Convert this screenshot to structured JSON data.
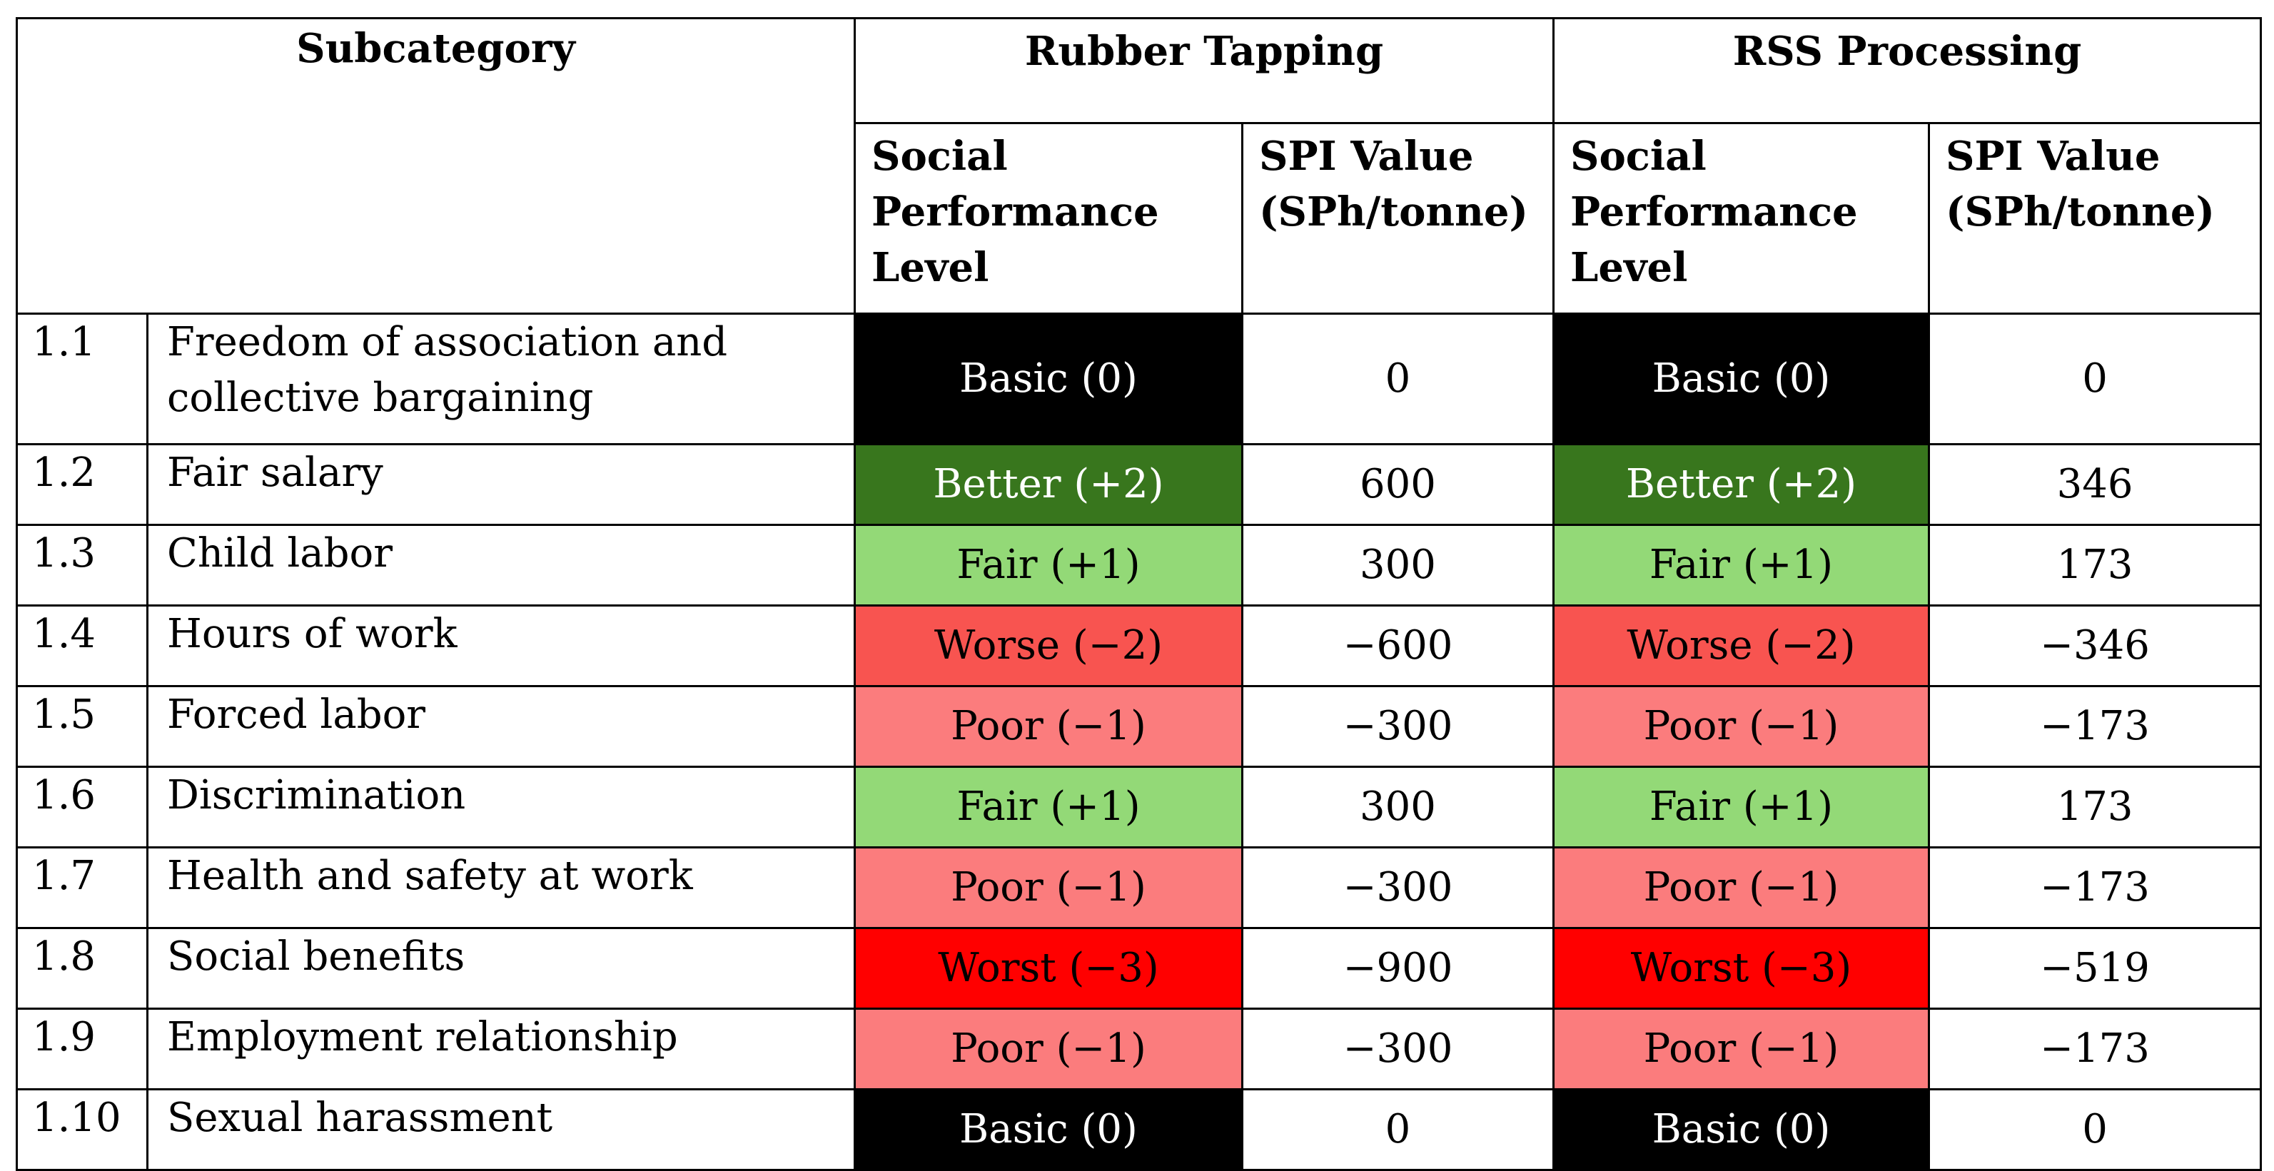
{
  "header": {
    "subcategory": "Subcategory",
    "group1": "Rubber Tapping",
    "group2": "RSS Processing",
    "spl": "Social Performance Level",
    "spi": "SPI Value (SPh/tonne)"
  },
  "level_colors": {
    "basic": "#000000",
    "better": "#38761d",
    "fair": "#93d977",
    "worse": "#f85450",
    "poor": "#fb7c7d",
    "worst": "#ff0000"
  },
  "rows": [
    {
      "num": "1.1",
      "name": "Freedom of association and collective bargaining",
      "rt_level": "Basic (0)",
      "rt_spi": "0",
      "rss_level": "Basic (0)",
      "rss_spi": "0",
      "level_class": "basic"
    },
    {
      "num": "1.2",
      "name": "Fair salary",
      "rt_level": "Better (+2)",
      "rt_spi": "600",
      "rss_level": "Better (+2)",
      "rss_spi": "346",
      "level_class": "better"
    },
    {
      "num": "1.3",
      "name": "Child labor",
      "rt_level": "Fair (+1)",
      "rt_spi": "300",
      "rss_level": "Fair (+1)",
      "rss_spi": "173",
      "level_class": "fair"
    },
    {
      "num": "1.4",
      "name": "Hours of work",
      "rt_level": "Worse (−2)",
      "rt_spi": "−600",
      "rss_level": "Worse (−2)",
      "rss_spi": "−346",
      "level_class": "worse"
    },
    {
      "num": "1.5",
      "name": "Forced labor",
      "rt_level": "Poor (−1)",
      "rt_spi": "−300",
      "rss_level": "Poor (−1)",
      "rss_spi": "−173",
      "level_class": "poor"
    },
    {
      "num": "1.6",
      "name": "Discrimination",
      "rt_level": "Fair (+1)",
      "rt_spi": "300",
      "rss_level": "Fair (+1)",
      "rss_spi": "173",
      "level_class": "fair"
    },
    {
      "num": "1.7",
      "name": "Health and safety at work",
      "rt_level": "Poor (−1)",
      "rt_spi": "−300",
      "rss_level": "Poor (−1)",
      "rss_spi": "−173",
      "level_class": "poor"
    },
    {
      "num": "1.8",
      "name": "Social benefits",
      "rt_level": "Worst (−3)",
      "rt_spi": "−900",
      "rss_level": "Worst (−3)",
      "rss_spi": "−519",
      "level_class": "worst"
    },
    {
      "num": "1.9",
      "name": "Employment relationship",
      "rt_level": "Poor (−1)",
      "rt_spi": "−300",
      "rss_level": "Poor (−1)",
      "rss_spi": "−173",
      "level_class": "poor"
    },
    {
      "num": "1.10",
      "name": "Sexual harassment",
      "rt_level": "Basic (0)",
      "rt_spi": "0",
      "rss_level": "Basic (0)",
      "rss_spi": "0",
      "level_class": "basic"
    }
  ]
}
